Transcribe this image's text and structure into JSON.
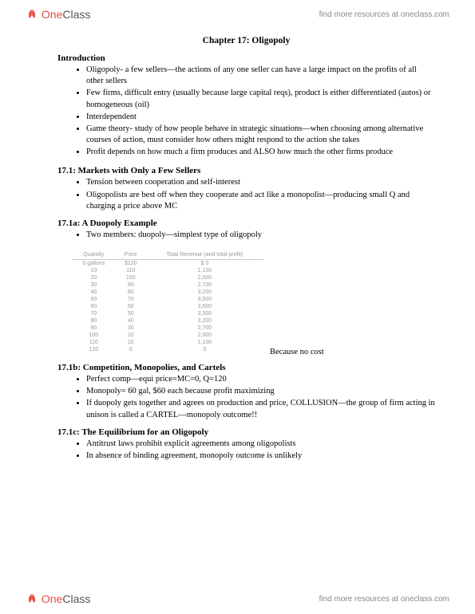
{
  "brand": {
    "one": "One",
    "class": "Class"
  },
  "header_link": "find more resources at oneclass.com",
  "footer_link": "find more resources at oneclass.com",
  "chapter_title": "Chapter 17: Oligopoly",
  "intro": {
    "title": "Introduction",
    "bullets": [
      "Oligopoly- a few sellers—the actions of any one seller can have a large impact on the profits of all other sellers",
      "Few firms, difficult entry (usually because large capital reqs), product is either differentiated (autos) or homogeneous (oil)",
      "Interdependent",
      "Game theory- study of how people behave in strategic situations—when choosing among alternative courses of action, must consider how others might respond to the action she takes",
      "Profit depends on how much a firm produces and ALSO how much the other firms produce"
    ]
  },
  "s171": {
    "title": "17.1: Markets with Only a Few Sellers",
    "bullets": [
      "Tension between cooperation and self-interest",
      "Oligopolists are best off when they cooperate and act like a monopolist—producing small Q and charging a price above MC"
    ]
  },
  "s171a": {
    "title": "17.1a: A Duopoly Example",
    "bullets": [
      "Two members: duopoly—simplest type of oligopoly"
    ]
  },
  "table": {
    "headers": [
      "Quantity",
      "Price",
      "Total Revenue (and total profit)"
    ],
    "rows": [
      [
        "0 gallons",
        "$120",
        "$   0"
      ],
      [
        "10",
        "110",
        "1,100"
      ],
      [
        "20",
        "100",
        "2,000"
      ],
      [
        "30",
        "90",
        "2,700"
      ],
      [
        "40",
        "80",
        "3,200"
      ],
      [
        "50",
        "70",
        "3,500"
      ],
      [
        "60",
        "60",
        "3,600"
      ],
      [
        "70",
        "50",
        "3,500"
      ],
      [
        "80",
        "40",
        "3,200"
      ],
      [
        "90",
        "30",
        "2,700"
      ],
      [
        "100",
        "20",
        "2,000"
      ],
      [
        "110",
        "10",
        "1,100"
      ],
      [
        "120",
        "0",
        "0"
      ]
    ],
    "caption": "Because no cost"
  },
  "s171b": {
    "title": "17.1b: Competition, Monopolies, and Cartels",
    "bullets": [
      "Perfect comp—equi price=MC=0, Q=120",
      "Monopoly= 60 gal, $60 each because profit maximizing",
      "If duopoly gets together and agrees on production and price, COLLUSION—the group of firm acting in unison is called a CARTEL—monopoly outcome!!"
    ]
  },
  "s171c": {
    "title": "17.1c: The Equilibrium for an Oligopoly",
    "bullets": [
      "Antitrust laws prohibit explicit agreements among oligopolists",
      "In absence of binding agreement, monopoly outcome is unlikely"
    ]
  }
}
